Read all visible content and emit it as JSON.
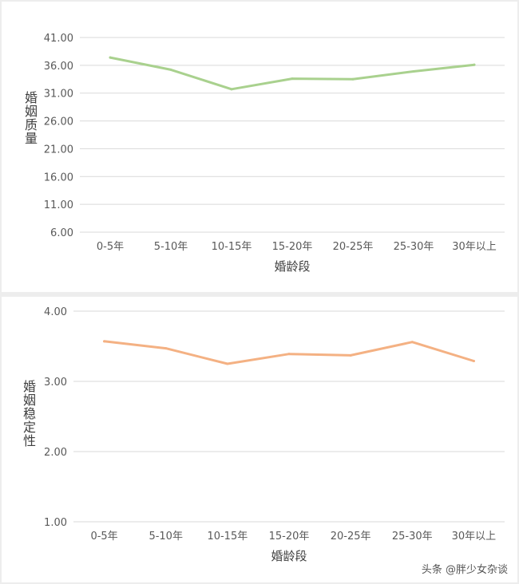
{
  "chart_data": [
    {
      "type": "line",
      "xlabel": "婚龄段",
      "ylabel": "婚姻质量",
      "categories": [
        "0-5年",
        "5-10年",
        "10-15年",
        "15-20年",
        "20-25年",
        "25-30年",
        "30年以上"
      ],
      "y_ticks": [
        "6.00",
        "11.00",
        "16.00",
        "21.00",
        "26.00",
        "31.00",
        "36.00",
        "41.00"
      ],
      "ylim": [
        6,
        41
      ],
      "grid": true,
      "series": [
        {
          "values": [
            37.4,
            35.2,
            31.7,
            33.6,
            33.5,
            34.9,
            36.1
          ],
          "color": "#a9d18e"
        }
      ]
    },
    {
      "type": "line",
      "xlabel": "婚龄段",
      "ylabel": "婚姻稳定性",
      "categories": [
        "0-5年",
        "5-10年",
        "10-15年",
        "15-20年",
        "20-25年",
        "25-30年",
        "30年以上"
      ],
      "y_ticks": [
        "1.00",
        "2.00",
        "3.00",
        "4.00"
      ],
      "ylim": [
        1,
        4
      ],
      "grid": true,
      "series": [
        {
          "values": [
            3.57,
            3.47,
            3.25,
            3.39,
            3.37,
            3.56,
            3.29
          ],
          "color": "#f4b183"
        }
      ]
    }
  ],
  "watermark": "头条 @胖少女杂谈"
}
